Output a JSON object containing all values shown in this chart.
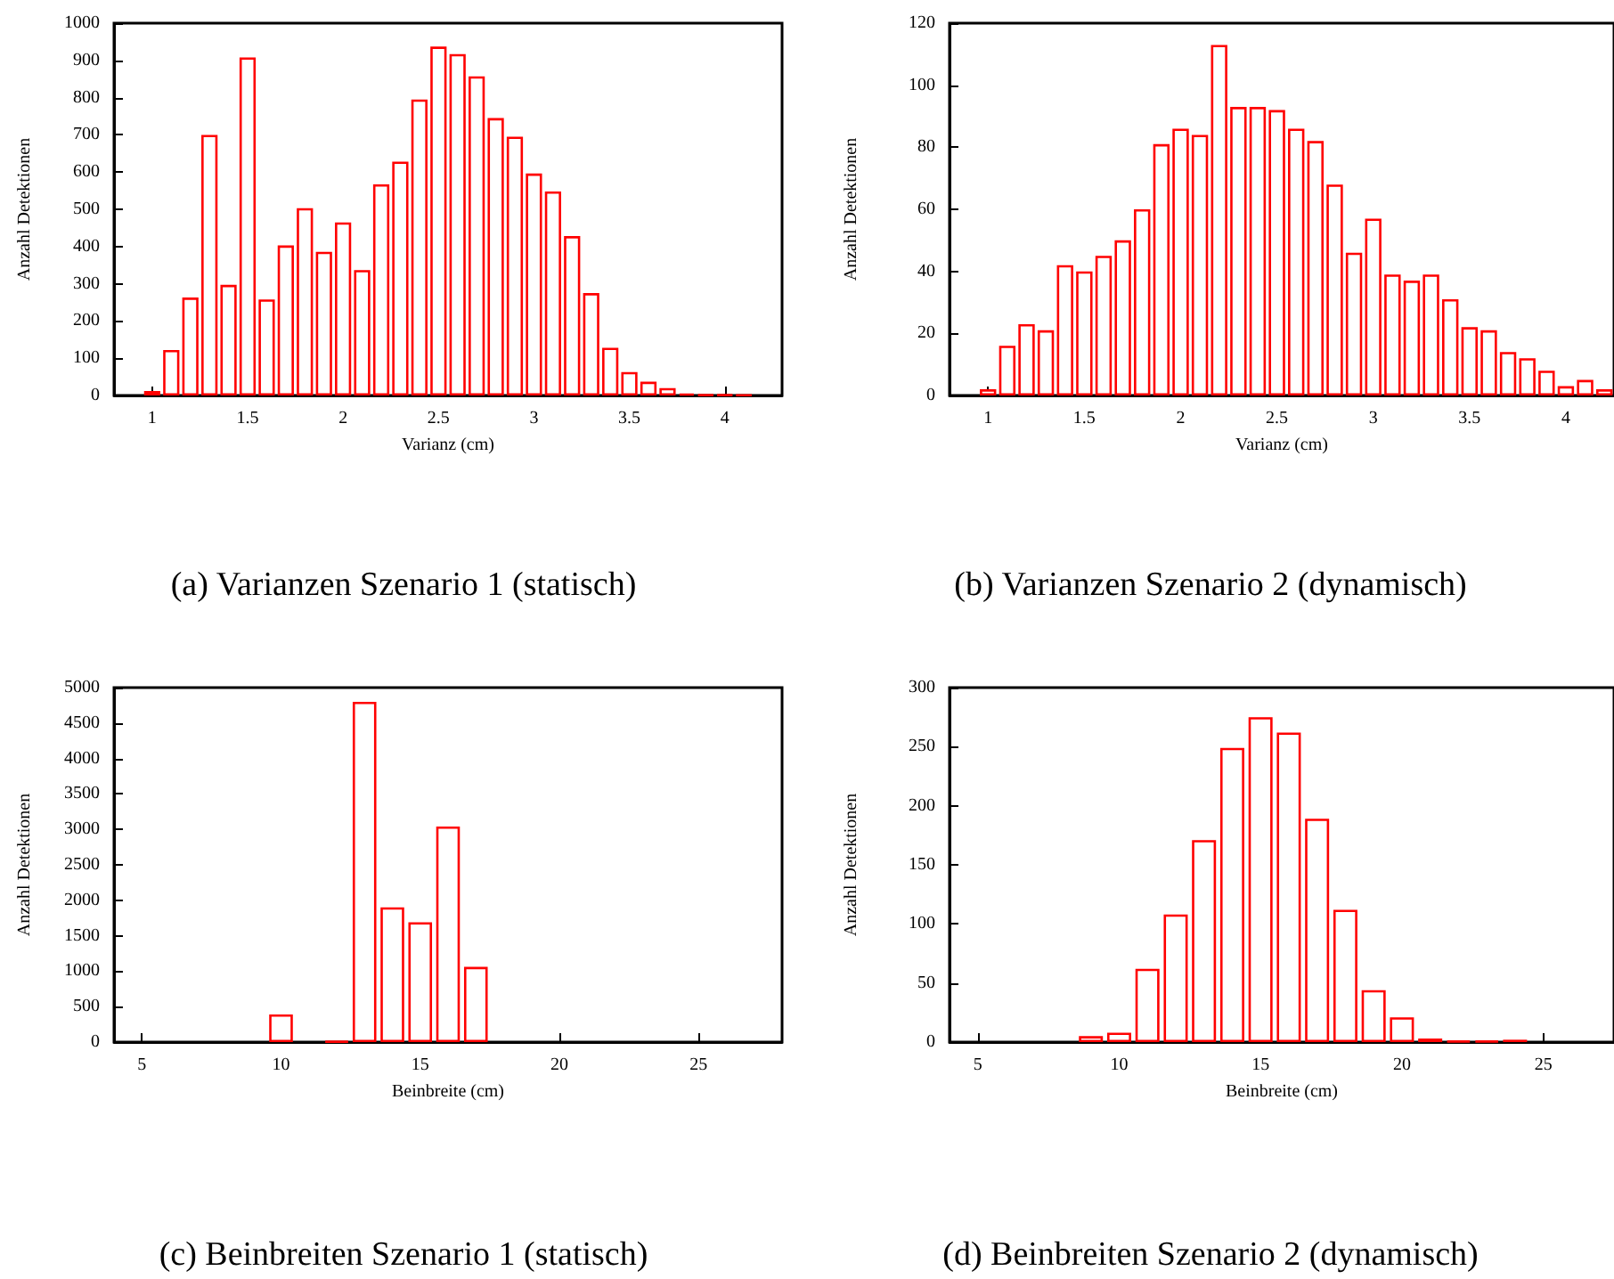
{
  "chart_data": [
    {
      "type": "bar",
      "title": "(a)  Varianzen Szenario 1 (statisch)",
      "xlabel": "Varianz (cm)",
      "ylabel": "Anzahl Detektionen",
      "x": [
        1.0,
        1.1,
        1.2,
        1.3,
        1.4,
        1.5,
        1.6,
        1.7,
        1.8,
        1.9,
        2.0,
        2.1,
        2.2,
        2.3,
        2.4,
        2.5,
        2.6,
        2.7,
        2.8,
        2.9,
        3.0,
        3.1,
        3.2,
        3.3,
        3.4,
        3.5,
        3.6,
        3.7,
        3.8,
        3.9,
        4.0,
        4.1
      ],
      "series": [
        {
          "color": "#ff0000",
          "values": [
            12,
            122,
            263,
            700,
            297,
            908,
            258,
            403,
            503,
            386,
            465,
            337,
            567,
            628,
            795,
            937,
            917,
            857,
            745,
            695,
            596,
            548,
            428,
            275,
            128,
            63,
            37,
            20,
            5,
            2,
            2,
            1
          ]
        }
      ],
      "xlim": [
        0.8,
        4.3
      ],
      "xticks": [
        1,
        1.5,
        2,
        2.5,
        3,
        3.5,
        4
      ],
      "ylim": [
        0,
        1000
      ],
      "yticks": [
        0,
        100,
        200,
        300,
        400,
        500,
        600,
        700,
        800,
        900,
        1000
      ]
    },
    {
      "type": "bar",
      "title": "(b)  Varianzen Szenario 2 (dynamisch)",
      "xlabel": "Varianz (cm)",
      "ylabel": "Anzahl Detektionen",
      "x": [
        1.0,
        1.1,
        1.2,
        1.3,
        1.4,
        1.5,
        1.6,
        1.7,
        1.8,
        1.9,
        2.0,
        2.1,
        2.2,
        2.3,
        2.4,
        2.5,
        2.6,
        2.7,
        2.8,
        2.9,
        3.0,
        3.1,
        3.2,
        3.3,
        3.4,
        3.5,
        3.6,
        3.7,
        3.8,
        3.9,
        4.0,
        4.1,
        4.2
      ],
      "series": [
        {
          "color": "#ff0000",
          "values": [
            2,
            16,
            23,
            21,
            42,
            40,
            45,
            50,
            60,
            81,
            86,
            84,
            113,
            93,
            93,
            92,
            86,
            82,
            68,
            46,
            57,
            39,
            37,
            39,
            31,
            22,
            21,
            14,
            12,
            8,
            3,
            5,
            2
          ]
        }
      ],
      "xlim": [
        0.8,
        4.25
      ],
      "xticks": [
        1,
        1.5,
        2,
        2.5,
        3,
        3.5,
        4
      ],
      "ylim": [
        0,
        120
      ],
      "yticks": [
        0,
        20,
        40,
        60,
        80,
        100,
        120
      ]
    },
    {
      "type": "bar",
      "title": "(c)  Beinbreiten Szenario 1 (statisch)",
      "xlabel": "Beinbreite (cm)",
      "ylabel": "Anzahl Detektionen",
      "x": [
        10,
        12,
        13,
        14,
        15,
        16,
        17
      ],
      "series": [
        {
          "color": "#ff0000",
          "values": [
            390,
            10,
            4800,
            1900,
            1690,
            3040,
            1060
          ]
        }
      ],
      "xlim": [
        4,
        28
      ],
      "xticks": [
        5,
        10,
        15,
        20,
        25
      ],
      "ylim": [
        0,
        5000
      ],
      "yticks": [
        0,
        500,
        1000,
        1500,
        2000,
        2500,
        3000,
        3500,
        4000,
        4500,
        5000
      ]
    },
    {
      "type": "bar",
      "title": "(d)  Beinbreiten Szenario 2 (dynamisch)",
      "xlabel": "Beinbreite (cm)",
      "ylabel": "Anzahl Detektionen",
      "x": [
        9,
        10,
        11,
        12,
        13,
        14,
        15,
        16,
        17,
        18,
        19,
        20,
        21,
        22,
        23,
        24
      ],
      "series": [
        {
          "color": "#ff0000",
          "values": [
            5,
            8,
            62,
            108,
            171,
            249,
            275,
            262,
            189,
            112,
            44,
            21,
            3,
            1,
            1,
            2
          ]
        }
      ],
      "xlim": [
        4,
        27.5
      ],
      "xticks": [
        5,
        10,
        15,
        20,
        25
      ],
      "ylim": [
        0,
        300
      ],
      "yticks": [
        0,
        50,
        100,
        150,
        200,
        250,
        300
      ]
    }
  ]
}
